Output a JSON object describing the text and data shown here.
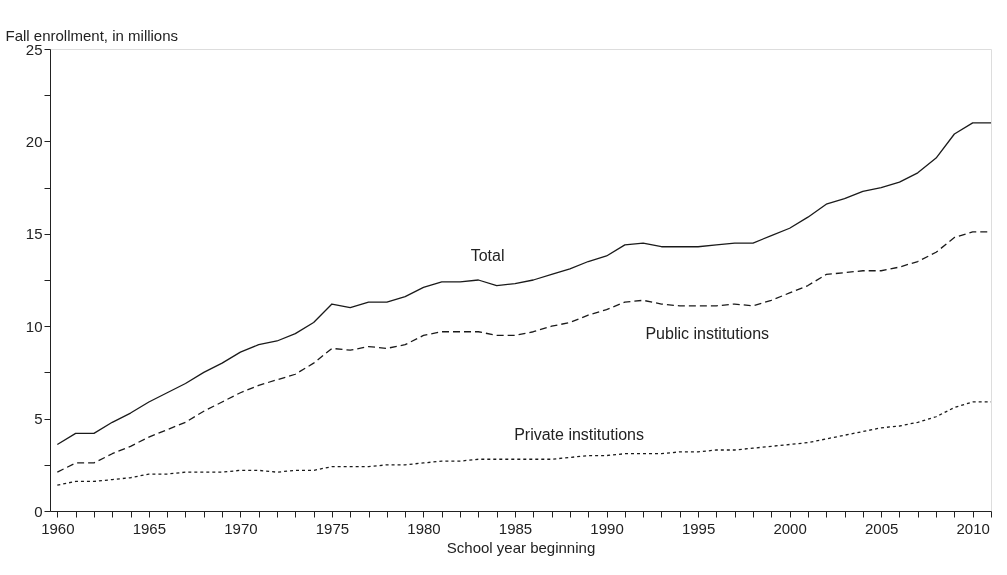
{
  "chart_data": {
    "type": "line",
    "xlabel": "School year beginning",
    "ylabel": "Fall enrollment, in millions",
    "x": [
      1960,
      1961,
      1962,
      1963,
      1964,
      1965,
      1966,
      1967,
      1968,
      1969,
      1970,
      1971,
      1972,
      1973,
      1974,
      1975,
      1976,
      1977,
      1978,
      1979,
      1980,
      1981,
      1982,
      1983,
      1984,
      1985,
      1986,
      1987,
      1988,
      1989,
      1990,
      1991,
      1992,
      1993,
      1994,
      1995,
      1996,
      1997,
      1998,
      1999,
      2000,
      2001,
      2002,
      2003,
      2004,
      2005,
      2006,
      2007,
      2008,
      2009,
      2010,
      2011
    ],
    "series": [
      {
        "name": "Total",
        "color": "#1a1a1a",
        "line_style": "solid",
        "values": [
          3.6,
          4.2,
          4.2,
          4.8,
          5.3,
          5.9,
          6.4,
          6.9,
          7.5,
          8.0,
          8.6,
          9.0,
          9.2,
          9.6,
          10.2,
          11.2,
          11.0,
          11.3,
          11.3,
          11.6,
          12.1,
          12.4,
          12.4,
          12.5,
          12.2,
          12.3,
          12.5,
          12.8,
          13.1,
          13.5,
          13.8,
          14.4,
          14.5,
          14.3,
          14.3,
          14.3,
          14.4,
          14.5,
          14.5,
          14.9,
          15.3,
          15.9,
          16.6,
          16.9,
          17.3,
          17.5,
          17.8,
          18.3,
          19.1,
          20.4,
          21.0,
          21.0
        ]
      },
      {
        "name": "Public institutions",
        "color": "#1a1a1a",
        "line_style": "dashed",
        "values": [
          2.1,
          2.6,
          2.6,
          3.1,
          3.5,
          4.0,
          4.4,
          4.8,
          5.4,
          5.9,
          6.4,
          6.8,
          7.1,
          7.4,
          8.0,
          8.8,
          8.7,
          8.9,
          8.8,
          9.0,
          9.5,
          9.7,
          9.7,
          9.7,
          9.5,
          9.5,
          9.7,
          10.0,
          10.2,
          10.6,
          10.9,
          11.3,
          11.4,
          11.2,
          11.1,
          11.1,
          11.1,
          11.2,
          11.1,
          11.4,
          11.8,
          12.2,
          12.8,
          12.9,
          13.0,
          13.0,
          13.2,
          13.5,
          14.0,
          14.8,
          15.1,
          15.1
        ]
      },
      {
        "name": "Private institutions",
        "color": "#1a1a1a",
        "line_style": "dotted",
        "values": [
          1.4,
          1.6,
          1.6,
          1.7,
          1.8,
          2.0,
          2.0,
          2.1,
          2.1,
          2.1,
          2.2,
          2.2,
          2.1,
          2.2,
          2.2,
          2.4,
          2.4,
          2.4,
          2.5,
          2.5,
          2.6,
          2.7,
          2.7,
          2.8,
          2.8,
          2.8,
          2.8,
          2.8,
          2.9,
          3.0,
          3.0,
          3.1,
          3.1,
          3.1,
          3.2,
          3.2,
          3.3,
          3.3,
          3.4,
          3.5,
          3.6,
          3.7,
          3.9,
          4.1,
          4.3,
          4.5,
          4.6,
          4.8,
          5.1,
          5.6,
          5.9,
          5.9
        ]
      }
    ],
    "xlim": [
      1959.6,
      2011
    ],
    "xticks": [
      1960,
      {
        "value": 1961,
        "label": null
      },
      {
        "value": 1962,
        "label": null
      },
      {
        "value": 1963,
        "label": null
      },
      {
        "value": 1964,
        "label": null
      },
      1965,
      {
        "value": 1966,
        "label": null
      },
      {
        "value": 1967,
        "label": null
      },
      {
        "value": 1968,
        "label": null
      },
      {
        "value": 1969,
        "label": null
      },
      1970,
      {
        "value": 1971,
        "label": null
      },
      {
        "value": 1972,
        "label": null
      },
      {
        "value": 1973,
        "label": null
      },
      {
        "value": 1974,
        "label": null
      },
      1975,
      {
        "value": 1976,
        "label": null
      },
      {
        "value": 1977,
        "label": null
      },
      {
        "value": 1978,
        "label": null
      },
      {
        "value": 1979,
        "label": null
      },
      1980,
      {
        "value": 1981,
        "label": null
      },
      {
        "value": 1982,
        "label": null
      },
      {
        "value": 1983,
        "label": null
      },
      {
        "value": 1984,
        "label": null
      },
      1985,
      {
        "value": 1986,
        "label": null
      },
      {
        "value": 1987,
        "label": null
      },
      {
        "value": 1988,
        "label": null
      },
      {
        "value": 1989,
        "label": null
      },
      1990,
      {
        "value": 1991,
        "label": null
      },
      {
        "value": 1992,
        "label": null
      },
      {
        "value": 1993,
        "label": null
      },
      {
        "value": 1994,
        "label": null
      },
      1995,
      {
        "value": 1996,
        "label": null
      },
      {
        "value": 1997,
        "label": null
      },
      {
        "value": 1998,
        "label": null
      },
      {
        "value": 1999,
        "label": null
      },
      2000,
      {
        "value": 2001,
        "label": null
      },
      {
        "value": 2002,
        "label": null
      },
      {
        "value": 2003,
        "label": null
      },
      {
        "value": 2004,
        "label": null
      },
      2005,
      {
        "value": 2006,
        "label": null
      },
      {
        "value": 2007,
        "label": null
      },
      {
        "value": 2008,
        "label": null
      },
      {
        "value": 2009,
        "label": null
      },
      2010,
      {
        "value": 2011,
        "label": null
      }
    ],
    "ylim": [
      0,
      25
    ],
    "yticks": [
      0,
      {
        "value": 2.5,
        "label": null
      },
      5,
      {
        "value": 7.5,
        "label": null
      },
      10,
      {
        "value": 12.5,
        "label": null
      },
      15,
      {
        "value": 17.5,
        "label": null
      },
      20,
      {
        "value": 22.5,
        "label": null
      },
      25
    ],
    "grid": false,
    "legend": false,
    "marker": "none"
  }
}
